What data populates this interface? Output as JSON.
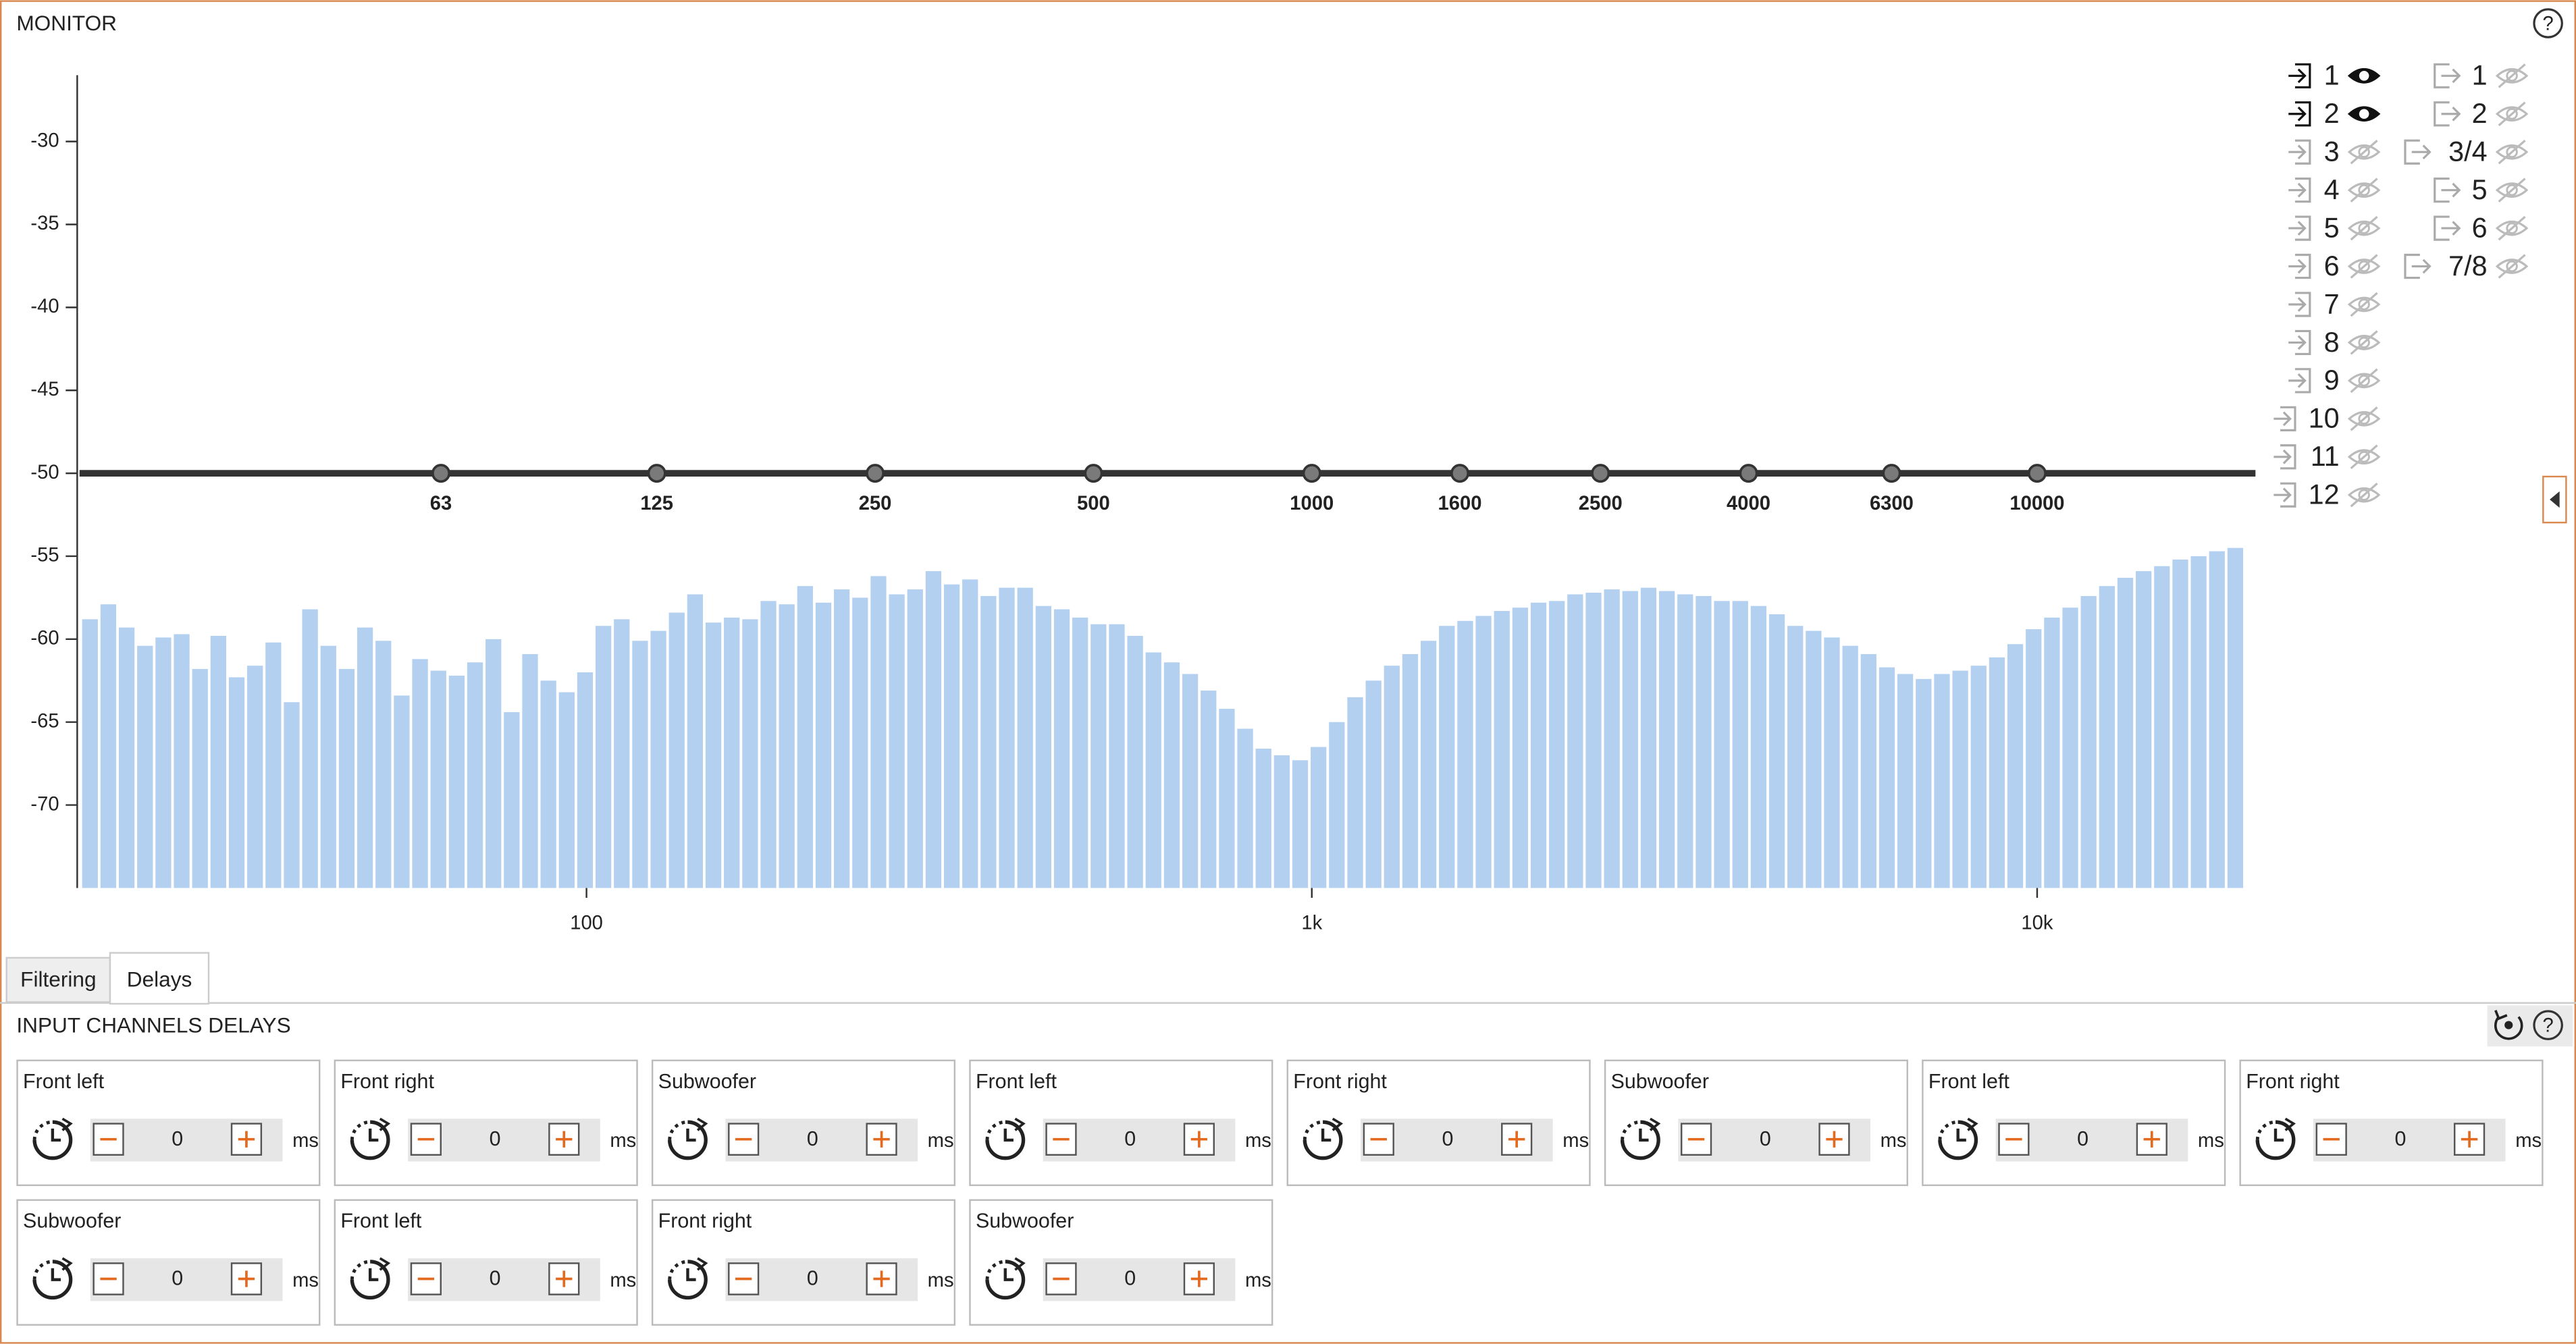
{
  "header": {
    "title": "MONITOR",
    "help": "?"
  },
  "chart_data": {
    "type": "bar",
    "color": "#b3d0f1",
    "values": [
      -58.8,
      -57.9,
      -59.3,
      -60.4,
      -59.9,
      -59.7,
      -61.8,
      -59.8,
      -62.3,
      -61.6,
      -60.2,
      -63.8,
      -58.2,
      -60.4,
      -61.8,
      -59.3,
      -60.1,
      -63.4,
      -61.2,
      -61.9,
      -62.2,
      -61.4,
      -60.0,
      -64.4,
      -60.9,
      -62.5,
      -63.2,
      -62.0,
      -59.2,
      -58.8,
      -60.1,
      -59.5,
      -58.4,
      -57.3,
      -59.0,
      -58.7,
      -58.8,
      -57.7,
      -57.9,
      -56.8,
      -57.8,
      -57.0,
      -57.5,
      -56.2,
      -57.3,
      -57.0,
      -55.9,
      -56.7,
      -56.4,
      -57.4,
      -56.9,
      -56.9,
      -58.0,
      -58.2,
      -58.7,
      -59.1,
      -59.1,
      -59.8,
      -60.8,
      -61.4,
      -62.1,
      -63.1,
      -64.2,
      -65.4,
      -66.6,
      -67.0,
      -67.3,
      -66.5,
      -65.0,
      -63.5,
      -62.5,
      -61.6,
      -60.9,
      -60.1,
      -59.2,
      -58.9,
      -58.6,
      -58.3,
      -58.1,
      -57.8,
      -57.7,
      -57.3,
      -57.2,
      -57.0,
      -57.1,
      -56.9,
      -57.1,
      -57.3,
      -57.4,
      -57.7,
      -57.7,
      -58.0,
      -58.5,
      -59.2,
      -59.5,
      -59.9,
      -60.4,
      -60.9,
      -61.7,
      -62.1,
      -62.4,
      -62.1,
      -61.9,
      -61.6,
      -61.1,
      -60.3,
      -59.4,
      -58.7,
      -58.1,
      -57.4,
      -56.8,
      -56.3,
      -55.9,
      -55.6,
      -55.2,
      -55.0,
      -54.7,
      -54.5
    ],
    "xlog": true,
    "xlim": [
      20,
      20000
    ],
    "xticks": [
      100,
      {
        "value": 1000,
        "label": "1k"
      },
      {
        "value": 10000,
        "label": "10k"
      }
    ],
    "ylim": [
      -75,
      -26
    ],
    "yticks": [
      -30,
      -35,
      -40,
      -45,
      -50,
      -55,
      -60,
      -65,
      -70
    ],
    "eq_curve": {
      "level": -50,
      "color": "#333333",
      "points": [
        63,
        125,
        250,
        500,
        1000,
        1600,
        2500,
        4000,
        6300,
        10000
      ]
    }
  },
  "legend": {
    "inputs": [
      {
        "label": "1",
        "visible": true
      },
      {
        "label": "2",
        "visible": true
      },
      {
        "label": "3",
        "visible": false
      },
      {
        "label": "4",
        "visible": false
      },
      {
        "label": "5",
        "visible": false
      },
      {
        "label": "6",
        "visible": false
      },
      {
        "label": "7",
        "visible": false
      },
      {
        "label": "8",
        "visible": false
      },
      {
        "label": "9",
        "visible": false
      },
      {
        "label": "10",
        "visible": false
      },
      {
        "label": "11",
        "visible": false
      },
      {
        "label": "12",
        "visible": false
      }
    ],
    "outputs": [
      {
        "label": "1",
        "color": "#e2707e",
        "visible": false
      },
      {
        "label": "2",
        "color": "#6655cc",
        "visible": false
      },
      {
        "label": "3/4",
        "color": "#1b8fd2",
        "visible": false
      },
      {
        "label": "5",
        "color": "#b8a21c",
        "visible": false
      },
      {
        "label": "6",
        "color": "#e03a3a",
        "visible": false
      },
      {
        "label": "7/8",
        "color": "#8f3fd6",
        "visible": false
      }
    ]
  },
  "tabs": [
    {
      "label": "Filtering",
      "active": false
    },
    {
      "label": "Delays",
      "active": true
    }
  ],
  "delays": {
    "title": "INPUT CHANNELS DELAYS",
    "help": "?",
    "unit": "ms",
    "channels": [
      {
        "name": "Front left",
        "value": "0"
      },
      {
        "name": "Front right",
        "value": "0"
      },
      {
        "name": "Subwoofer",
        "value": "0"
      },
      {
        "name": "Front left",
        "value": "0"
      },
      {
        "name": "Front right",
        "value": "0"
      },
      {
        "name": "Subwoofer",
        "value": "0"
      },
      {
        "name": "Front left",
        "value": "0"
      },
      {
        "name": "Front right",
        "value": "0"
      },
      {
        "name": "Subwoofer",
        "value": "0"
      },
      {
        "name": "Front left",
        "value": "0"
      },
      {
        "name": "Front right",
        "value": "0"
      },
      {
        "name": "Subwoofer",
        "value": "0"
      }
    ]
  }
}
